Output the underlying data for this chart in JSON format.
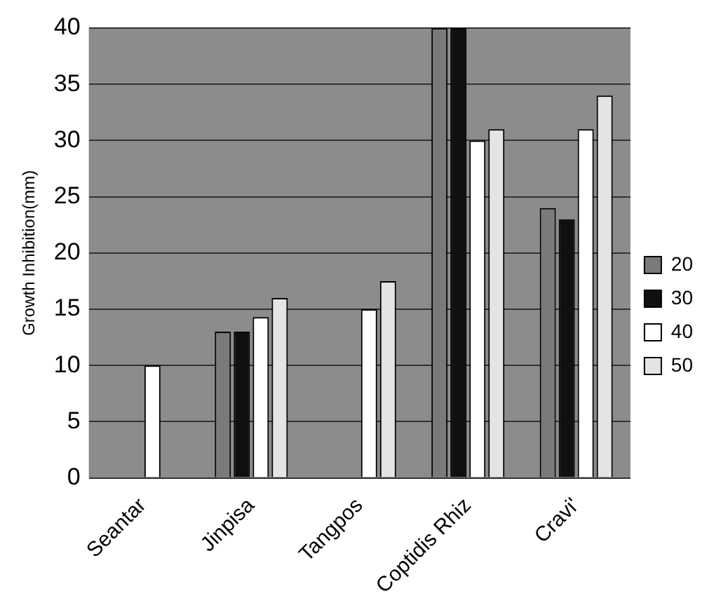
{
  "chart_data": {
    "type": "bar",
    "ylabel": "Growth Inhibition(mm)",
    "categories": [
      "Seantar",
      "Jinpisa",
      "Tangpos",
      "Coptidis Rhiz",
      "Cravi'"
    ],
    "series": [
      {
        "name": "20",
        "color": "#7a7a7a",
        "values": [
          null,
          13,
          null,
          40,
          24
        ]
      },
      {
        "name": "30",
        "color": "#101010",
        "values": [
          null,
          13,
          null,
          40,
          23
        ]
      },
      {
        "name": "40",
        "color": "#ffffff",
        "values": [
          10,
          14.3,
          15,
          30,
          31
        ]
      },
      {
        "name": "50",
        "color": "#e4e4e4",
        "values": [
          null,
          16,
          17.5,
          31,
          34
        ]
      }
    ],
    "ylim": [
      0,
      40
    ],
    "yticks": [
      0,
      5,
      10,
      15,
      20,
      25,
      30,
      35,
      40
    ],
    "grid": "y",
    "legend": "right"
  }
}
